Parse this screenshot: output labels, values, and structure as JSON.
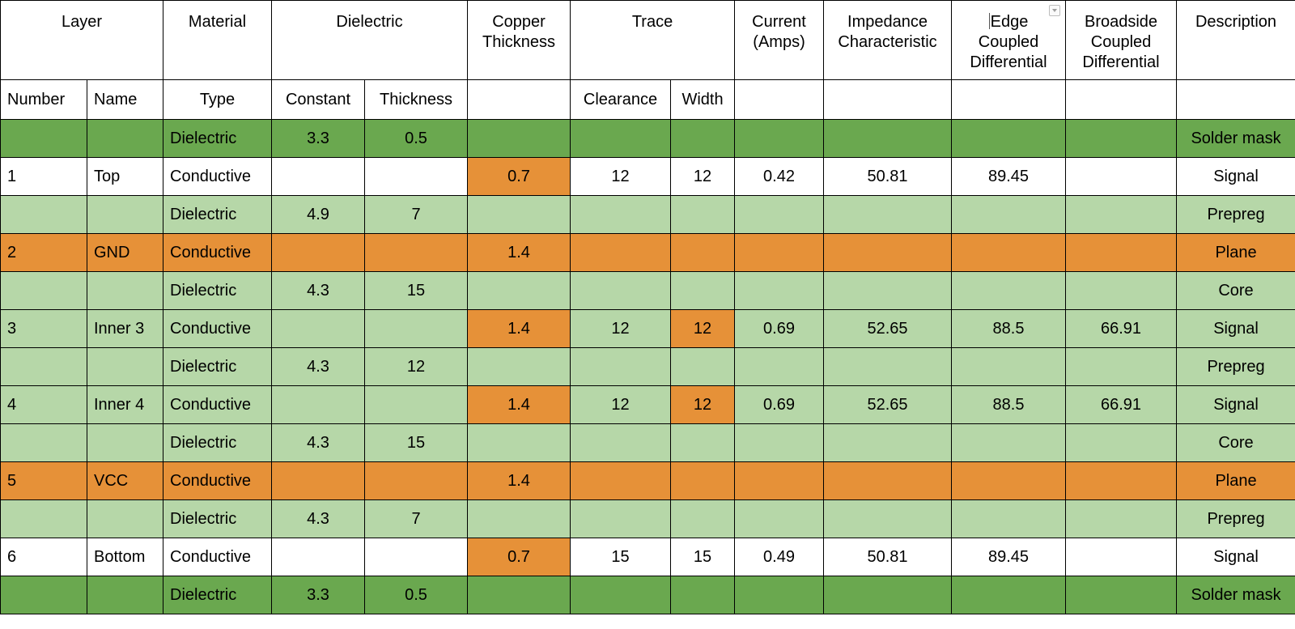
{
  "colors": {
    "mask": "#6aa84f",
    "dielectric": "#b6d7a8",
    "copper": "#e69138",
    "white": "#ffffff"
  },
  "header": {
    "layer": "Layer",
    "material": "Material",
    "dielectric": "Dielectric",
    "copper_thickness": "Copper\nThickness",
    "trace": "Trace",
    "current": "Current\n(Amps)",
    "impedance": "Impedance\nCharacteristic",
    "edge": "Edge\nCoupled\nDifferential",
    "broadside": "Broadside\nCoupled\nDifferential",
    "description": "Description",
    "filter_icon": "dropdown-filter-icon"
  },
  "subheader": [
    "Number",
    "Name",
    "Type",
    "Constant",
    "Thickness",
    "",
    "Clearance",
    "Width",
    "",
    "",
    "",
    "",
    ""
  ],
  "rows": [
    {
      "style": "mask",
      "cells": [
        "",
        "",
        "Dielectric",
        "3.3",
        "0.5",
        "",
        "",
        "",
        "",
        "",
        "",
        "",
        "Solder mask"
      ],
      "copper": []
    },
    {
      "style": "white",
      "cells": [
        "1",
        "Top",
        "Conductive",
        "",
        "",
        "0.7",
        "12",
        "12",
        "0.42",
        "50.81",
        "89.45",
        "",
        "Signal"
      ],
      "copper": [
        5
      ]
    },
    {
      "style": "dielectric",
      "cells": [
        "",
        "",
        "Dielectric",
        "4.9",
        "7",
        "",
        "",
        "",
        "",
        "",
        "",
        "",
        "Prepreg"
      ],
      "copper": []
    },
    {
      "style": "copper",
      "cells": [
        "2",
        "GND",
        "Conductive",
        "",
        "",
        "1.4",
        "",
        "",
        "",
        "",
        "",
        "",
        "Plane"
      ],
      "copper": []
    },
    {
      "style": "dielectric",
      "cells": [
        "",
        "",
        "Dielectric",
        "4.3",
        "15",
        "",
        "",
        "",
        "",
        "",
        "",
        "",
        "Core"
      ],
      "copper": []
    },
    {
      "style": "dielectric",
      "cells": [
        "3",
        "Inner 3",
        "Conductive",
        "",
        "",
        "1.4",
        "12",
        "12",
        "0.69",
        "52.65",
        "88.5",
        "66.91",
        "Signal"
      ],
      "copper": [
        5,
        7
      ]
    },
    {
      "style": "dielectric",
      "cells": [
        "",
        "",
        "Dielectric",
        "4.3",
        "12",
        "",
        "",
        "",
        "",
        "",
        "",
        "",
        "Prepreg"
      ],
      "copper": []
    },
    {
      "style": "dielectric",
      "cells": [
        "4",
        "Inner 4",
        "Conductive",
        "",
        "",
        "1.4",
        "12",
        "12",
        "0.69",
        "52.65",
        "88.5",
        "66.91",
        "Signal"
      ],
      "copper": [
        5,
        7
      ]
    },
    {
      "style": "dielectric",
      "cells": [
        "",
        "",
        "Dielectric",
        "4.3",
        "15",
        "",
        "",
        "",
        "",
        "",
        "",
        "",
        "Core"
      ],
      "copper": []
    },
    {
      "style": "copper",
      "cells": [
        "5",
        "VCC",
        "Conductive",
        "",
        "",
        "1.4",
        "",
        "",
        "",
        "",
        "",
        "",
        "Plane"
      ],
      "copper": []
    },
    {
      "style": "dielectric",
      "cells": [
        "",
        "",
        "Dielectric",
        "4.3",
        "7",
        "",
        "",
        "",
        "",
        "",
        "",
        "",
        "Prepreg"
      ],
      "copper": []
    },
    {
      "style": "white",
      "cells": [
        "6",
        "Bottom",
        "Conductive",
        "",
        "",
        "0.7",
        "15",
        "15",
        "0.49",
        "50.81",
        "89.45",
        "",
        "Signal"
      ],
      "copper": [
        5
      ]
    },
    {
      "style": "mask",
      "cells": [
        "",
        "",
        "Dielectric",
        "3.3",
        "0.5",
        "",
        "",
        "",
        "",
        "",
        "",
        "",
        "Solder mask"
      ],
      "copper": []
    }
  ]
}
